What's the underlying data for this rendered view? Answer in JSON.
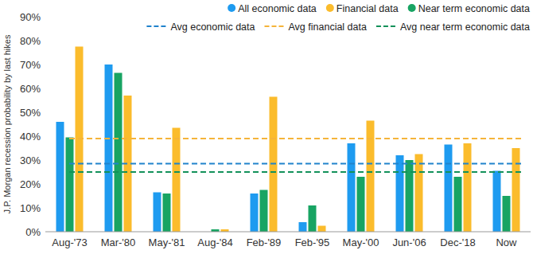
{
  "chart_data": {
    "type": "bar",
    "y_label": "J.P. Morgan recession probability by last hikes",
    "categories": [
      "Aug-'73",
      "Mar-'80",
      "May-'81",
      "Aug-'84",
      "Feb-'89",
      "Feb-'95",
      "May-'00",
      "Jun-'06",
      "Dec-'18",
      "Now"
    ],
    "series": [
      {
        "name": "All economic data",
        "color": "#1e9bf0",
        "values": [
          46,
          70,
          16.5,
          0,
          16,
          4,
          37,
          32,
          36.5,
          25.5
        ]
      },
      {
        "name": "Financial data",
        "color": "#fbbc2c",
        "values": [
          77.5,
          57,
          43.5,
          1,
          56.5,
          2.5,
          46.5,
          32.5,
          37,
          35
        ]
      },
      {
        "name": "Near term economic data",
        "color": "#18a463",
        "values": [
          39.5,
          66.5,
          16,
          1,
          17.5,
          11,
          23,
          30,
          23,
          15
        ]
      }
    ],
    "averages": [
      {
        "name": "Avg economic data",
        "value": 28.5,
        "color": "#2083cc",
        "line_style": "dashed"
      },
      {
        "name": "Avg financial data",
        "value": 39,
        "color": "#f5b43a",
        "line_style": "dashed"
      },
      {
        "name": "Avg near term economic data",
        "value": 25,
        "color": "#13915a",
        "line_style": "dashed"
      }
    ],
    "ylim": [
      0,
      90
    ],
    "yticks": [
      {
        "value": 0,
        "label": "0%"
      },
      {
        "value": 10,
        "label": "10%"
      },
      {
        "value": 20,
        "label": "20%"
      },
      {
        "value": 30,
        "label": "30%"
      },
      {
        "value": 40,
        "label": "40%"
      },
      {
        "value": 50,
        "label": "50%"
      },
      {
        "value": 60,
        "label": "60%"
      },
      {
        "value": 70,
        "label": "70%"
      },
      {
        "value": 80,
        "label": "80%"
      },
      {
        "value": 90,
        "label": "90%"
      }
    ],
    "grid": false,
    "legend": "top-right"
  }
}
